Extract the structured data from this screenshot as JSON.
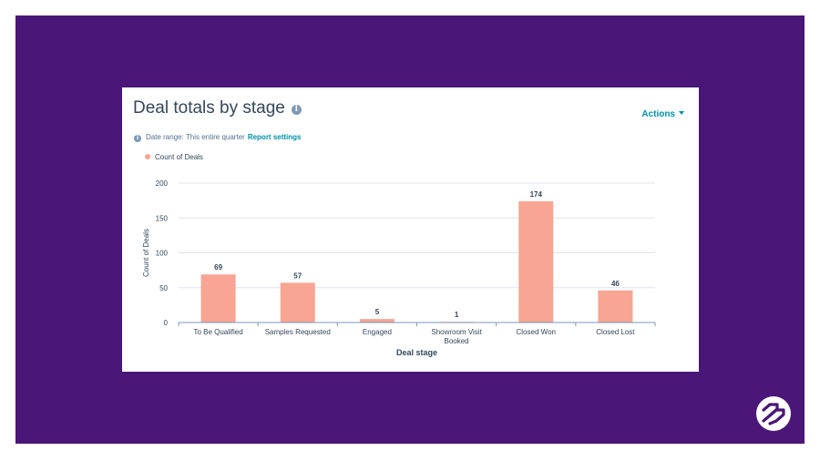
{
  "card": {
    "title": "Deal totals by stage",
    "actions_label": "Actions",
    "date_range_label": "Date range:",
    "date_range_value": "This entire quarter",
    "report_settings_label": "Report settings"
  },
  "colors": {
    "background": "#4a1677",
    "bar": "#f8a593",
    "link": "#0091ae",
    "text": "#33475b"
  },
  "chart_data": {
    "type": "bar",
    "categories": [
      "To Be Qualified",
      "Samples Requested",
      "Engaged",
      "Showroom Visit Booked",
      "Closed Won",
      "Closed Lost"
    ],
    "series": [
      {
        "name": "Count of Deals",
        "values": [
          69,
          57,
          5,
          1,
          174,
          46
        ]
      }
    ],
    "data_labels": [
      "69",
      "57",
      "5",
      "1",
      "174",
      "46"
    ],
    "title": "Deal totals by stage",
    "xlabel": "Deal stage",
    "ylabel": "Count of Deals",
    "ylim": [
      0,
      200
    ],
    "yticks": [
      0,
      50,
      100,
      150,
      200
    ],
    "grid": true,
    "legend": "top-left"
  }
}
